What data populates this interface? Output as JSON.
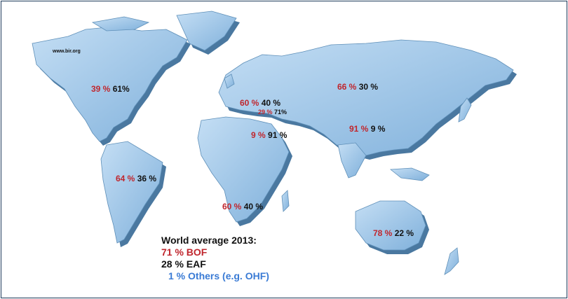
{
  "watermark": "www.bir.org",
  "regions": [
    {
      "name": "north-america",
      "bof": "39 %",
      "eaf": "61%"
    },
    {
      "name": "europe",
      "bof": "60 %",
      "eaf": "40 %"
    },
    {
      "name": "cis",
      "bof": "66 %",
      "eaf": "30 %"
    },
    {
      "name": "turkey",
      "bof": "29 %",
      "eaf": "71%"
    },
    {
      "name": "middle-east",
      "bof": "9 %",
      "eaf": "91 %"
    },
    {
      "name": "asia",
      "bof": "91 %",
      "eaf": "9 %"
    },
    {
      "name": "south-america",
      "bof": "64 %",
      "eaf": "36 %"
    },
    {
      "name": "africa",
      "bof": "60 %",
      "eaf": "40 %"
    },
    {
      "name": "oceania",
      "bof": "78 %",
      "eaf": "22 %"
    }
  ],
  "legend": {
    "title": "World average 2013:",
    "bof": "71 % BOF",
    "eaf": "28 % EAF",
    "others": "1 % Others (e.g. OHF)"
  },
  "colors": {
    "bof": "#c0262d",
    "eaf": "#111111",
    "others": "#3a7bd5",
    "land_top": "#9ec7ea",
    "land_side": "#4f7fa8"
  }
}
